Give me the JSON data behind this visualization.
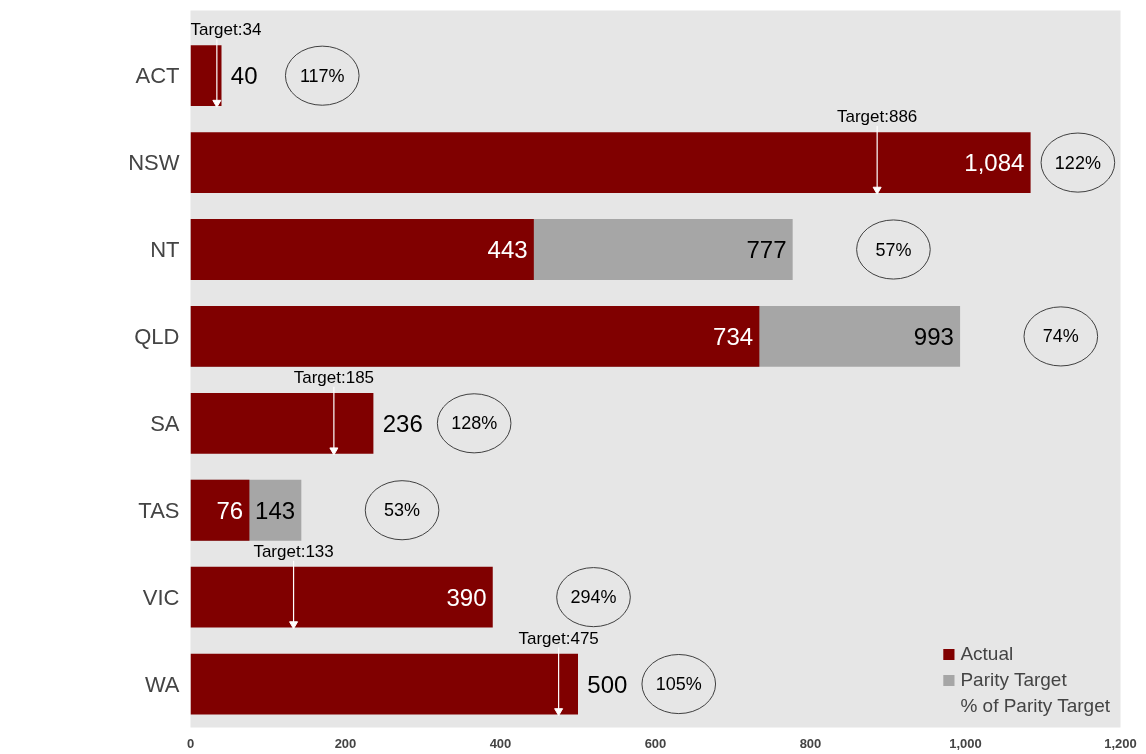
{
  "chart_data": {
    "type": "bar",
    "orientation": "horizontal",
    "categories": [
      "ACT",
      "NSW",
      "NT",
      "QLD",
      "SA",
      "TAS",
      "VIC",
      "WA"
    ],
    "series": [
      {
        "name": "Parity Target",
        "color": "#a6a6a6",
        "values": [
          null,
          null,
          777,
          993,
          null,
          143,
          null,
          null
        ]
      },
      {
        "name": "Actual",
        "color": "#800000",
        "values": [
          40,
          1084,
          443,
          734,
          236,
          76,
          390,
          500
        ],
        "value_labels": [
          "40",
          "1,084",
          "443",
          "734",
          "236",
          "76",
          "390",
          "500"
        ]
      },
      {
        "type": "scatter",
        "marker": "triangle",
        "color": "#ffffff",
        "values": [
          34,
          886,
          null,
          null,
          185,
          null,
          133,
          475
        ],
        "value_labels": [
          "Target:34",
          "Target:886",
          null,
          null,
          "Target:185",
          null,
          "Target:133",
          "Target:475"
        ]
      }
    ],
    "data_labels": true,
    "xlim": [
      0,
      1200
    ],
    "xticks": [
      0,
      200,
      400,
      600,
      800,
      {
        "value": 1000,
        "label": "1,000"
      },
      {
        "value": 1200,
        "label": "1,200"
      }
    ],
    "legend": "bottom right",
    "annotations": [
      "% of Parity Target",
      "117%",
      "122%",
      "57%",
      "74%",
      "128%",
      "53%",
      "294%",
      "105%"
    ]
  }
}
